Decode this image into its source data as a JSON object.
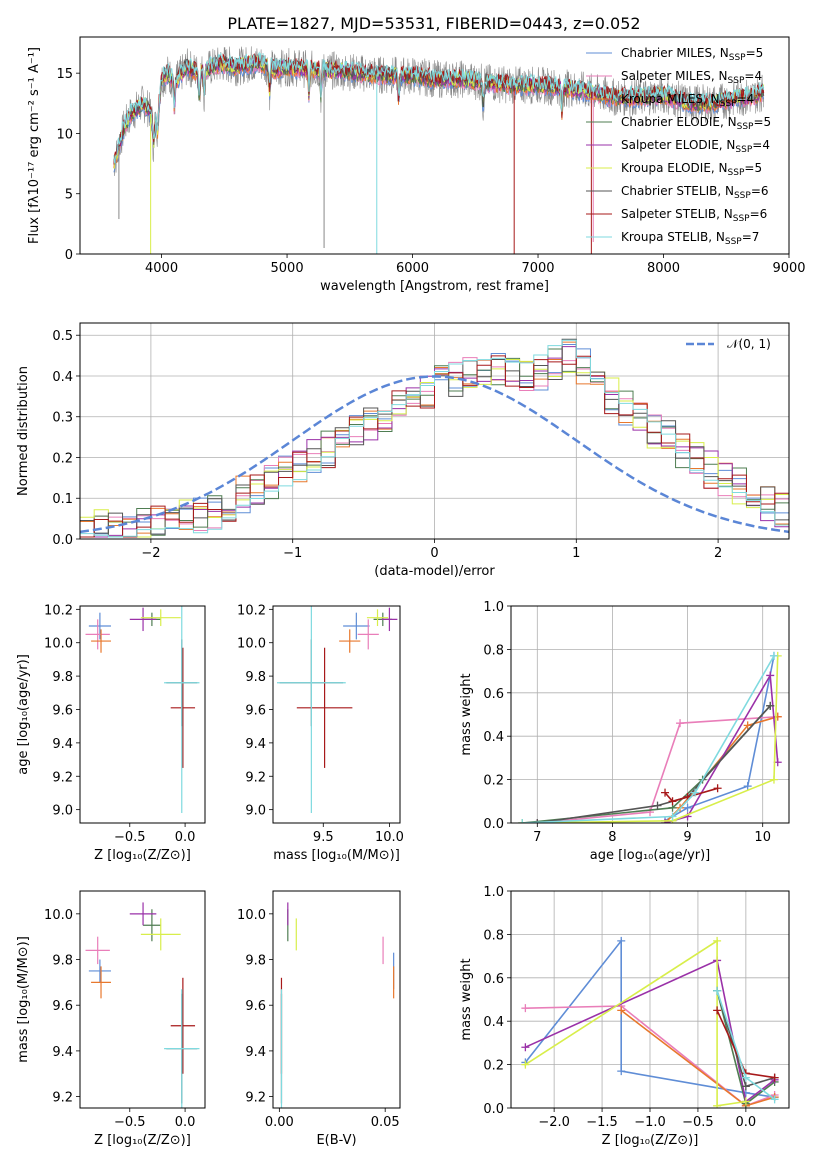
{
  "figure": {
    "title": "PLATE=1827, MJD=53531, FIBERID=0443, z=0.052"
  },
  "colors": {
    "Chabrier MILES": "#5f8dd6",
    "Salpeter MILES": "#e97eb9",
    "Kroupa MILES": "#e8782d",
    "Chabrier ELODIE": "#4f7d52",
    "Salpeter ELODIE": "#9a31a8",
    "Kroupa ELODIE": "#d8ee4a",
    "Chabrier STELIB": "#555555",
    "Salpeter STELIB": "#a7191a",
    "Kroupa STELIB": "#7fdadf",
    "data": "#888888",
    "normal": "#5b86d6"
  },
  "chart_data": [
    {
      "id": "spectrum",
      "type": "line",
      "title": "PLATE=1827, MJD=53531, FIBERID=0443, z=0.052",
      "xlabel": "wavelength [Angstrom, rest frame]",
      "ylabel": "Flux [fλ10⁻¹⁷ erg cm⁻² s⁻¹ A⁻¹]",
      "xlim": [
        3350,
        9000
      ],
      "ylim": [
        0,
        18
      ],
      "xticks": [
        4000,
        5000,
        6000,
        7000,
        8000,
        9000
      ],
      "yticks": [
        0,
        5,
        10,
        15
      ],
      "grid": false,
      "legend": "top-right",
      "x": [
        3620,
        3650,
        3700,
        3750,
        3800,
        3850,
        3900,
        3950,
        4000,
        4050,
        4100,
        4200,
        4300,
        4400,
        4500,
        4600,
        4700,
        4800,
        4900,
        5000,
        5200,
        5400,
        5600,
        5800,
        6000,
        6200,
        6400,
        6600,
        6800,
        7000,
        7200,
        7400,
        7600,
        7800,
        8000,
        8200,
        8400,
        8600,
        8700,
        8800
      ],
      "y": [
        7.5,
        8.5,
        10.5,
        11.5,
        12.0,
        12.5,
        12.0,
        10.5,
        14.5,
        15.0,
        14.2,
        15.5,
        15.0,
        15.5,
        15.8,
        15.5,
        15.8,
        15.8,
        15.3,
        15.5,
        15.3,
        15.2,
        15.0,
        14.8,
        14.8,
        14.5,
        14.5,
        14.2,
        14.0,
        14.0,
        13.8,
        13.5,
        13.0,
        13.0,
        13.2,
        12.5,
        12.5,
        13.0,
        13.0,
        13.5
      ],
      "series": [
        {
          "name": "Chabrier MILES, N$_{SSP}$=5",
          "label_main": "Chabrier MILES, N",
          "label_sub": "SSP",
          "label_end": "=5"
        },
        {
          "name": "Salpeter MILES, N$_{SSP}$=4",
          "label_main": "Salpeter MILES, N",
          "label_sub": "SSP",
          "label_end": "=4"
        },
        {
          "name": "Kroupa MILES, N$_{SSP}$=4",
          "label_main": "Kroupa MILES, N",
          "label_sub": "SSP",
          "label_end": "=4"
        },
        {
          "name": "Chabrier ELODIE, N$_{SSP}$=5",
          "label_main": "Chabrier ELODIE, N",
          "label_sub": "SSP",
          "label_end": "=5"
        },
        {
          "name": "Salpeter ELODIE, N$_{SSP}$=4",
          "label_main": "Salpeter ELODIE, N",
          "label_sub": "SSP",
          "label_end": "=4"
        },
        {
          "name": "Kroupa ELODIE, N$_{SSP}$=5",
          "label_main": "Kroupa ELODIE, N",
          "label_sub": "SSP",
          "label_end": "=5"
        },
        {
          "name": "Chabrier STELIB, N$_{SSP}$=6",
          "label_main": "Chabrier STELIB, N",
          "label_sub": "SSP",
          "label_end": "=6"
        },
        {
          "name": "Salpeter STELIB, N$_{SSP}$=6",
          "label_main": "Salpeter STELIB, N",
          "label_sub": "SSP",
          "label_end": "=6"
        },
        {
          "name": "Kroupa STELIB, N$_{SSP}$=7",
          "label_main": "Kroupa STELIB, N",
          "label_sub": "SSP",
          "label_end": "=7"
        }
      ]
    },
    {
      "id": "residuals",
      "type": "bar",
      "xlabel": "(data-model)/error",
      "ylabel": "Normed distribution",
      "xlim": [
        -2.5,
        2.5
      ],
      "ylim": [
        0,
        0.53
      ],
      "xticks": [
        -2,
        -1,
        0,
        1,
        2
      ],
      "yticks": [
        0.0,
        0.1,
        0.2,
        0.3,
        0.4,
        0.5
      ],
      "grid": true,
      "legend": "top-right",
      "legend_label": "𝒩(0, 1)",
      "bin_width": 0.1,
      "bin_start": -2.5,
      "values": [
        0.02,
        0.03,
        0.03,
        0.03,
        0.04,
        0.04,
        0.05,
        0.06,
        0.06,
        0.07,
        0.09,
        0.11,
        0.12,
        0.14,
        0.16,
        0.18,
        0.2,
        0.22,
        0.25,
        0.27,
        0.29,
        0.31,
        0.33,
        0.35,
        0.36,
        0.38,
        0.39,
        0.4,
        0.41,
        0.42,
        0.41,
        0.4,
        0.41,
        0.43,
        0.45,
        0.42,
        0.38,
        0.35,
        0.32,
        0.3,
        0.27,
        0.25,
        0.22,
        0.19,
        0.17,
        0.15,
        0.13,
        0.11,
        0.09,
        0.07,
        0.06,
        0.05,
        0.04,
        0.04,
        0.03,
        0.03,
        0.03,
        0.02,
        0.02,
        0.02
      ],
      "normal": {
        "mean": 0,
        "sigma": 1
      }
    },
    {
      "id": "age-vs-Z",
      "type": "scatter",
      "xlabel": "Z [log₁₀(Z/Z⊙)]",
      "ylabel": "age  [log₁₀(age/yr)]",
      "xlim": [
        -0.95,
        0.18
      ],
      "ylim": [
        8.92,
        10.22
      ],
      "xticks": [
        -0.5,
        0.0
      ],
      "yticks": [
        9.0,
        9.2,
        9.4,
        9.6,
        9.8,
        10.0,
        10.2
      ],
      "points": [
        {
          "s": "Chabrier MILES",
          "x": -0.77,
          "y": 10.1,
          "xe": 0.1,
          "ye": 0.08
        },
        {
          "s": "Salpeter MILES",
          "x": -0.79,
          "y": 10.05,
          "xe": 0.11,
          "ye": 0.09
        },
        {
          "s": "Kroupa MILES",
          "x": -0.76,
          "y": 10.01,
          "xe": 0.09,
          "ye": 0.07
        },
        {
          "s": "Chabrier ELODIE",
          "x": -0.3,
          "y": 10.14,
          "xe": 0.08,
          "ye": 0.04
        },
        {
          "s": "Salpeter ELODIE",
          "x": -0.38,
          "y": 10.14,
          "xe": 0.12,
          "ye": 0.07
        },
        {
          "s": "Kroupa ELODIE",
          "x": -0.22,
          "y": 10.15,
          "xe": 0.18,
          "ye": 0.05
        },
        {
          "s": "Chabrier STELIB",
          "x": -0.03,
          "y": 9.76,
          "xe": 0.14,
          "ye": 0.26
        },
        {
          "s": "Salpeter STELIB",
          "x": -0.02,
          "y": 9.61,
          "xe": 0.11,
          "ye": 0.36
        },
        {
          "s": "Kroupa STELIB",
          "x": -0.03,
          "y": 9.76,
          "xe": 0.16,
          "ye": 0.78
        }
      ]
    },
    {
      "id": "age-vs-mass",
      "type": "scatter",
      "xlabel": "mass [log₁₀(M/M⊙)]",
      "ylabel": "",
      "xlim": [
        9.12,
        10.08
      ],
      "ylim": [
        8.92,
        10.22
      ],
      "xticks": [
        9.5,
        10.0
      ],
      "yticks": [
        9.0,
        9.2,
        9.4,
        9.6,
        9.8,
        10.0,
        10.2
      ],
      "points": [
        {
          "s": "Chabrier MILES",
          "x": 9.75,
          "y": 10.1,
          "xe": 0.1,
          "ye": 0.08
        },
        {
          "s": "Salpeter MILES",
          "x": 9.84,
          "y": 10.05,
          "xe": 0.08,
          "ye": 0.09
        },
        {
          "s": "Kroupa MILES",
          "x": 9.7,
          "y": 10.01,
          "xe": 0.08,
          "ye": 0.07
        },
        {
          "s": "Chabrier ELODIE",
          "x": 9.95,
          "y": 10.14,
          "xe": 0.07,
          "ye": 0.04
        },
        {
          "s": "Salpeter ELODIE",
          "x": 10.0,
          "y": 10.14,
          "xe": 0.06,
          "ye": 0.07
        },
        {
          "s": "Kroupa ELODIE",
          "x": 9.91,
          "y": 10.15,
          "xe": 0.08,
          "ye": 0.05
        },
        {
          "s": "Chabrier STELIB",
          "x": 9.41,
          "y": 9.76,
          "xe": 0.24,
          "ye": 0.26
        },
        {
          "s": "Salpeter STELIB",
          "x": 9.51,
          "y": 9.61,
          "xe": 0.21,
          "ye": 0.36
        },
        {
          "s": "Kroupa STELIB",
          "x": 9.41,
          "y": 9.76,
          "xe": 0.26,
          "ye": 0.78
        }
      ]
    },
    {
      "id": "weight-vs-age",
      "type": "line",
      "xlabel": "age  [log₁₀(age/yr)]",
      "ylabel": "mass weight",
      "xlim": [
        6.65,
        10.35
      ],
      "ylim": [
        0,
        1
      ],
      "xticks": [
        7,
        8,
        9,
        10
      ],
      "yticks": [
        0.0,
        0.2,
        0.4,
        0.6,
        0.8,
        1.0
      ],
      "grid": true,
      "series": [
        {
          "s": "Chabrier MILES",
          "x": [
            8.7,
            9.0,
            9.8,
            10.15
          ],
          "y": [
            0.01,
            0.07,
            0.17,
            0.77
          ]
        },
        {
          "s": "Salpeter MILES",
          "x": [
            7.0,
            8.5,
            8.9,
            10.2
          ],
          "y": [
            0.0,
            0.05,
            0.46,
            0.49
          ]
        },
        {
          "s": "Kroupa MILES",
          "x": [
            8.7,
            8.9,
            9.8,
            10.2
          ],
          "y": [
            0.0,
            0.07,
            0.45,
            0.49
          ]
        },
        {
          "s": "Chabrier ELODIE",
          "x": [
            6.8,
            8.8,
            9.2,
            10.1
          ],
          "y": [
            0.0,
            0.07,
            0.2,
            0.54
          ]
        },
        {
          "s": "Salpeter ELODIE",
          "x": [
            8.7,
            9.0,
            10.1,
            10.2
          ],
          "y": [
            0.0,
            0.03,
            0.68,
            0.28
          ]
        },
        {
          "s": "Kroupa ELODIE",
          "x": [
            6.8,
            8.8,
            10.15,
            10.2
          ],
          "y": [
            0.0,
            0.01,
            0.2,
            0.77
          ]
        },
        {
          "s": "Chabrier STELIB",
          "x": [
            7.0,
            8.6,
            9.0,
            10.1
          ],
          "y": [
            0.0,
            0.08,
            0.12,
            0.54
          ]
        },
        {
          "s": "Salpeter STELIB",
          "x": [
            8.7,
            8.8,
            9.0,
            9.4
          ],
          "y": [
            0.14,
            0.1,
            0.12,
            0.16
          ]
        },
        {
          "s": "Kroupa STELIB",
          "x": [
            6.8,
            8.8,
            9.1,
            10.15
          ],
          "y": [
            0.0,
            0.03,
            0.14,
            0.77
          ]
        }
      ]
    },
    {
      "id": "mass-vs-Z",
      "type": "scatter",
      "xlabel": "Z [log₁₀(Z/Z⊙)]",
      "ylabel": "mass [log₁₀(M/M⊙)]",
      "xlim": [
        -0.95,
        0.18
      ],
      "ylim": [
        9.15,
        10.1
      ],
      "xticks": [
        -0.5,
        0.0
      ],
      "yticks": [
        9.2,
        9.4,
        9.6,
        9.8,
        10.0
      ],
      "points": [
        {
          "s": "Chabrier MILES",
          "x": -0.77,
          "y": 9.75,
          "xe": 0.1,
          "ye": 0.05
        },
        {
          "s": "Salpeter MILES",
          "x": -0.79,
          "y": 9.84,
          "xe": 0.11,
          "ye": 0.06
        },
        {
          "s": "Kroupa MILES",
          "x": -0.76,
          "y": 9.7,
          "xe": 0.09,
          "ye": 0.07
        },
        {
          "s": "Chabrier ELODIE",
          "x": -0.3,
          "y": 9.95,
          "xe": 0.08,
          "ye": 0.07
        },
        {
          "s": "Salpeter ELODIE",
          "x": -0.38,
          "y": 10.0,
          "xe": 0.12,
          "ye": 0.05
        },
        {
          "s": "Kroupa ELODIE",
          "x": -0.22,
          "y": 9.91,
          "xe": 0.18,
          "ye": 0.07
        },
        {
          "s": "Chabrier STELIB",
          "x": -0.03,
          "y": 9.41,
          "xe": 0.14,
          "ye": 0.24
        },
        {
          "s": "Salpeter STELIB",
          "x": -0.02,
          "y": 9.51,
          "xe": 0.11,
          "ye": 0.21
        },
        {
          "s": "Kroupa STELIB",
          "x": -0.03,
          "y": 9.41,
          "xe": 0.16,
          "ye": 0.26
        }
      ]
    },
    {
      "id": "mass-vs-EBV",
      "type": "scatter",
      "xlabel": "E(B-V)",
      "ylabel": "",
      "xlim": [
        -0.003,
        0.057
      ],
      "ylim": [
        9.15,
        10.1
      ],
      "xticks": [
        0.0,
        0.05
      ],
      "xtick_labels": [
        "0.00",
        "0.05"
      ],
      "yticks": [
        9.2,
        9.4,
        9.6,
        9.8,
        10.0
      ],
      "points": [
        {
          "s": "Chabrier MILES",
          "x": 0.054,
          "y": 9.75,
          "xe": 0.0,
          "ye": 0.08
        },
        {
          "s": "Salpeter MILES",
          "x": 0.049,
          "y": 9.84,
          "xe": 0.0,
          "ye": 0.06
        },
        {
          "s": "Kroupa MILES",
          "x": 0.054,
          "y": 9.7,
          "xe": 0.0,
          "ye": 0.07
        },
        {
          "s": "Chabrier ELODIE",
          "x": 0.004,
          "y": 9.95,
          "xe": 0.0,
          "ye": 0.07
        },
        {
          "s": "Salpeter ELODIE",
          "x": 0.004,
          "y": 10.0,
          "xe": 0.0,
          "ye": 0.05
        },
        {
          "s": "Kroupa ELODIE",
          "x": 0.008,
          "y": 9.91,
          "xe": 0.0,
          "ye": 0.07
        },
        {
          "s": "Chabrier STELIB",
          "x": 0.001,
          "y": 9.41,
          "xe": 0.0,
          "ye": 0.24
        },
        {
          "s": "Salpeter STELIB",
          "x": 0.001,
          "y": 9.51,
          "xe": 0.0,
          "ye": 0.21
        },
        {
          "s": "Kroupa STELIB",
          "x": 0.001,
          "y": 9.41,
          "xe": 0.0,
          "ye": 0.26
        }
      ]
    },
    {
      "id": "weight-vs-Z",
      "type": "line",
      "xlabel": "Z [log₁₀(Z/Z⊙)]",
      "ylabel": "mass weight",
      "xlim": [
        -2.45,
        0.45
      ],
      "ylim": [
        0,
        1
      ],
      "xticks": [
        -2.0,
        -1.5,
        -1.0,
        -0.5,
        0.0
      ],
      "yticks": [
        0.0,
        0.2,
        0.4,
        0.6,
        0.8,
        1.0
      ],
      "grid": true,
      "series": [
        {
          "s": "Chabrier MILES",
          "x": [
            -2.3,
            -1.3,
            -1.3,
            0.0,
            0.3
          ],
          "y": [
            0.21,
            0.77,
            0.17,
            0.07,
            0.05
          ]
        },
        {
          "s": "Salpeter MILES",
          "x": [
            -2.3,
            -1.3,
            0.0,
            0.3
          ],
          "y": [
            0.46,
            0.47,
            0.01,
            0.06
          ]
        },
        {
          "s": "Kroupa MILES",
          "x": [
            -1.3,
            0.0,
            0.3
          ],
          "y": [
            0.45,
            0.01,
            0.05
          ]
        },
        {
          "s": "Chabrier ELODIE",
          "x": [
            -0.3,
            0.0,
            0.3
          ],
          "y": [
            0.54,
            0.02,
            0.12
          ]
        },
        {
          "s": "Salpeter ELODIE",
          "x": [
            -2.3,
            -0.3,
            0.0,
            0.3
          ],
          "y": [
            0.28,
            0.68,
            0.03,
            0.13
          ]
        },
        {
          "s": "Kroupa ELODIE",
          "x": [
            -2.3,
            -0.3,
            -0.3,
            0.0
          ],
          "y": [
            0.2,
            0.77,
            0.01,
            0.03
          ]
        },
        {
          "s": "Chabrier STELIB",
          "x": [
            -0.3,
            0.0,
            0.3
          ],
          "y": [
            0.54,
            0.1,
            0.14
          ]
        },
        {
          "s": "Salpeter STELIB",
          "x": [
            -0.3,
            0.0,
            0.3
          ],
          "y": [
            0.45,
            0.16,
            0.14
          ]
        },
        {
          "s": "Kroupa STELIB",
          "x": [
            -0.3,
            0.0,
            0.3
          ],
          "y": [
            0.54,
            0.14,
            0.04
          ]
        }
      ]
    }
  ]
}
